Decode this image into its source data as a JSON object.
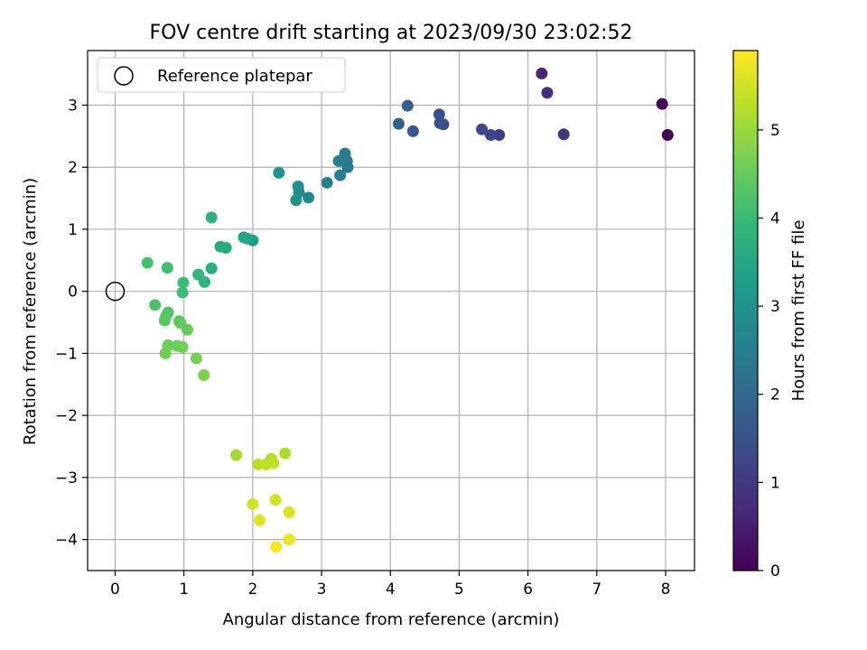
{
  "chart_data": {
    "type": "scatter",
    "title": "FOV centre drift starting at 2023/09/30 23:02:52",
    "xlabel": "Angular distance from reference (arcmin)",
    "ylabel": "Rotation from reference (arcmin)",
    "xlim": [
      -0.4,
      8.42
    ],
    "ylim": [
      -4.5,
      3.88
    ],
    "x_ticks": [
      0,
      1,
      2,
      3,
      4,
      5,
      6,
      7,
      8
    ],
    "y_ticks": [
      -4,
      -3,
      -2,
      -1,
      0,
      1,
      2,
      3
    ],
    "grid": true,
    "legend": {
      "placement": "top-left",
      "entries": [
        "Reference platepar"
      ]
    },
    "reference_point": {
      "name": "Reference platepar",
      "x": 0,
      "y": 0
    },
    "colorbar": {
      "label": "Hours from first FF file",
      "min": 0,
      "max": 5.9,
      "ticks": [
        0,
        1,
        2,
        3,
        4,
        5
      ],
      "colormap": "viridis"
    },
    "points": [
      {
        "x": 8.03,
        "y": 2.52,
        "h": 0.0
      },
      {
        "x": 7.95,
        "y": 3.02,
        "h": 0.1
      },
      {
        "x": 6.2,
        "y": 3.51,
        "h": 0.6
      },
      {
        "x": 6.28,
        "y": 3.2,
        "h": 0.75
      },
      {
        "x": 6.52,
        "y": 2.53,
        "h": 0.95
      },
      {
        "x": 5.58,
        "y": 2.52,
        "h": 1.1
      },
      {
        "x": 5.46,
        "y": 2.52,
        "h": 1.2
      },
      {
        "x": 5.33,
        "y": 2.61,
        "h": 1.3
      },
      {
        "x": 4.77,
        "y": 2.69,
        "h": 1.4
      },
      {
        "x": 4.72,
        "y": 2.71,
        "h": 1.45
      },
      {
        "x": 4.71,
        "y": 2.85,
        "h": 1.5
      },
      {
        "x": 4.33,
        "y": 2.58,
        "h": 1.65
      },
      {
        "x": 4.25,
        "y": 2.99,
        "h": 1.75
      },
      {
        "x": 4.12,
        "y": 2.7,
        "h": 1.85
      },
      {
        "x": 3.38,
        "y": 2.0,
        "h": 2.3
      },
      {
        "x": 3.37,
        "y": 2.1,
        "h": 2.4
      },
      {
        "x": 3.34,
        "y": 2.22,
        "h": 2.45
      },
      {
        "x": 3.25,
        "y": 2.1,
        "h": 2.5
      },
      {
        "x": 3.27,
        "y": 1.87,
        "h": 2.55
      },
      {
        "x": 3.08,
        "y": 1.75,
        "h": 2.6
      },
      {
        "x": 2.81,
        "y": 1.51,
        "h": 2.75
      },
      {
        "x": 2.67,
        "y": 1.6,
        "h": 2.85
      },
      {
        "x": 2.66,
        "y": 1.69,
        "h": 2.9
      },
      {
        "x": 2.63,
        "y": 1.47,
        "h": 2.95
      },
      {
        "x": 2.38,
        "y": 1.91,
        "h": 3.05
      },
      {
        "x": 1.4,
        "y": 1.19,
        "h": 3.75
      },
      {
        "x": 2.0,
        "y": 0.82,
        "h": 3.3
      },
      {
        "x": 1.92,
        "y": 0.85,
        "h": 3.4
      },
      {
        "x": 1.87,
        "y": 0.87,
        "h": 3.45
      },
      {
        "x": 1.61,
        "y": 0.7,
        "h": 3.55
      },
      {
        "x": 1.53,
        "y": 0.72,
        "h": 3.6
      },
      {
        "x": 1.4,
        "y": 0.37,
        "h": 3.7
      },
      {
        "x": 1.3,
        "y": 0.15,
        "h": 3.8
      },
      {
        "x": 1.21,
        "y": 0.27,
        "h": 3.9
      },
      {
        "x": 0.99,
        "y": 0.14,
        "h": 4.0
      },
      {
        "x": 0.98,
        "y": -0.02,
        "h": 4.05
      },
      {
        "x": 0.76,
        "y": 0.38,
        "h": 4.1
      },
      {
        "x": 0.47,
        "y": 0.46,
        "h": 4.15
      },
      {
        "x": 0.58,
        "y": -0.22,
        "h": 4.2
      },
      {
        "x": 0.77,
        "y": -0.34,
        "h": 4.25
      },
      {
        "x": 0.74,
        "y": -0.4,
        "h": 4.3
      },
      {
        "x": 0.72,
        "y": -0.47,
        "h": 4.35
      },
      {
        "x": 0.93,
        "y": -0.48,
        "h": 4.4
      },
      {
        "x": 0.95,
        "y": -0.51,
        "h": 4.45
      },
      {
        "x": 1.05,
        "y": -0.62,
        "h": 4.5
      },
      {
        "x": 0.77,
        "y": -0.87,
        "h": 4.55
      },
      {
        "x": 0.9,
        "y": -0.88,
        "h": 4.55
      },
      {
        "x": 0.98,
        "y": -0.9,
        "h": 4.6
      },
      {
        "x": 0.73,
        "y": -1.0,
        "h": 4.6
      },
      {
        "x": 1.18,
        "y": -1.08,
        "h": 4.65
      },
      {
        "x": 1.29,
        "y": -1.35,
        "h": 4.7
      },
      {
        "x": 1.76,
        "y": -2.64,
        "h": 5.1
      },
      {
        "x": 2.47,
        "y": -2.61,
        "h": 5.15
      },
      {
        "x": 2.27,
        "y": -2.7,
        "h": 5.2
      },
      {
        "x": 2.08,
        "y": -2.79,
        "h": 5.25
      },
      {
        "x": 2.19,
        "y": -2.79,
        "h": 5.3
      },
      {
        "x": 2.3,
        "y": -2.77,
        "h": 5.35
      },
      {
        "x": 2.0,
        "y": -3.43,
        "h": 5.45
      },
      {
        "x": 2.33,
        "y": -3.36,
        "h": 5.5
      },
      {
        "x": 2.53,
        "y": -3.56,
        "h": 5.55
      },
      {
        "x": 2.1,
        "y": -3.69,
        "h": 5.6
      },
      {
        "x": 2.53,
        "y": -4.0,
        "h": 5.7
      },
      {
        "x": 2.34,
        "y": -4.12,
        "h": 5.85
      }
    ]
  }
}
